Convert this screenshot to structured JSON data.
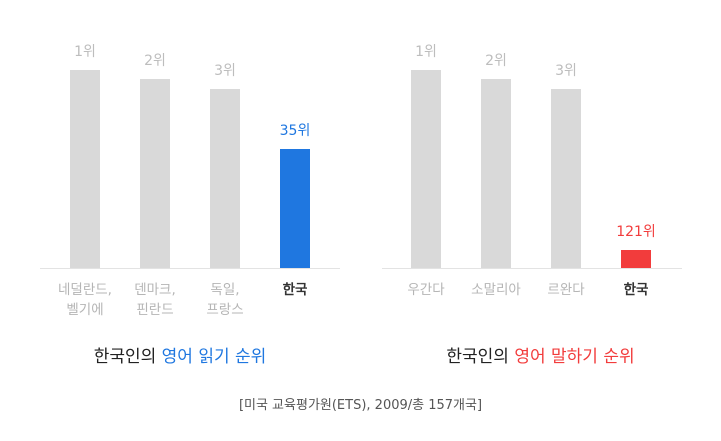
{
  "chart_data": [
    {
      "type": "bar",
      "categories": [
        [
          "네덜란드,",
          "벨기에"
        ],
        [
          "덴마크,",
          "핀란드"
        ],
        [
          "독일,",
          "프랑스"
        ],
        [
          "한국"
        ]
      ],
      "values": [
        1,
        2,
        3,
        35
      ],
      "value_labels": [
        "1위",
        "2위",
        "3위",
        "35위"
      ],
      "highlight_index": 3,
      "colors": {
        "bar": "#d9d9d9",
        "highlight": "#1f77e0"
      },
      "title_parts": [
        "한국인의 ",
        "영어 읽기 순위"
      ]
    },
    {
      "type": "bar",
      "categories": [
        [
          "우간다"
        ],
        [
          "소말리아"
        ],
        [
          "르완다"
        ],
        [
          "한국"
        ]
      ],
      "values": [
        1,
        2,
        3,
        121
      ],
      "value_labels": [
        "1위",
        "2위",
        "3위",
        "121위"
      ],
      "highlight_index": 3,
      "colors": {
        "bar": "#d9d9d9",
        "highlight": "#f23c3c"
      },
      "title_parts": [
        "한국인의 ",
        "영어 말하기 순위"
      ]
    }
  ],
  "source_note": "[미국 교육평가원(ETS), 2009/총 157개국]"
}
